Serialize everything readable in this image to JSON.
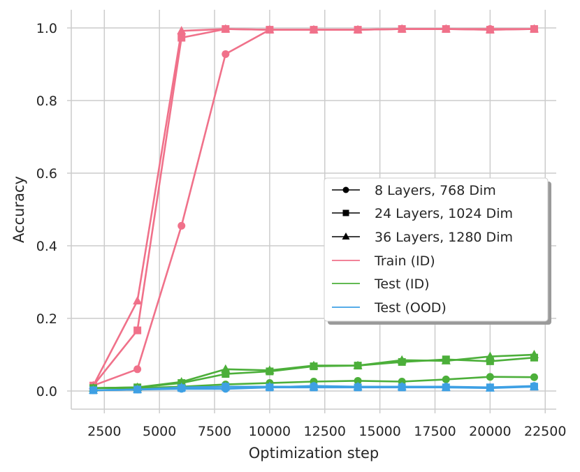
{
  "chart_data": {
    "type": "line",
    "title": "",
    "xlabel": "Optimization step",
    "ylabel": "Accuracy",
    "xlim": [
      1000,
      23000
    ],
    "ylim": [
      -0.05,
      1.05
    ],
    "x_ticks": [
      2500,
      5000,
      7500,
      10000,
      12500,
      15000,
      17500,
      20000,
      22500
    ],
    "y_ticks": [
      0.0,
      0.2,
      0.4,
      0.6,
      0.8,
      1.0
    ],
    "x_tick_labels": [
      "2500",
      "5000",
      "7500",
      "10000",
      "12500",
      "15000",
      "17500",
      "20000",
      "22500"
    ],
    "y_tick_labels": [
      "0.0",
      "0.2",
      "0.4",
      "0.6",
      "0.8",
      "1.0"
    ],
    "grid": true,
    "legend_position": "center-right",
    "x": [
      2000,
      4000,
      6000,
      8000,
      10000,
      12000,
      14000,
      16000,
      18000,
      20000,
      22000
    ],
    "legend": {
      "markers": [
        {
          "label": "8 Layers, 768 Dim",
          "marker": "circle"
        },
        {
          "label": "24 Layers, 1024 Dim",
          "marker": "square"
        },
        {
          "label": "36 Layers, 1280 Dim",
          "marker": "triangle"
        }
      ],
      "lines": [
        {
          "label": "Train (ID)",
          "color": "#f0718a"
        },
        {
          "label": "Test (ID)",
          "color": "#4caf3a"
        },
        {
          "label": "Test (OOD)",
          "color": "#3ea0e4"
        }
      ]
    },
    "series": [
      {
        "split": "Train (ID)",
        "model": "8 Layers, 768 Dim",
        "marker": "circle",
        "color": "#f0718a",
        "values": [
          0.015,
          0.06,
          0.455,
          0.928,
          0.995,
          0.995,
          0.995,
          0.997,
          0.997,
          0.997,
          0.997
        ]
      },
      {
        "split": "Train (ID)",
        "model": "24 Layers, 1024 Dim",
        "marker": "square",
        "color": "#f0718a",
        "values": [
          0.015,
          0.167,
          0.973,
          0.997,
          0.995,
          0.995,
          0.995,
          0.997,
          0.997,
          0.995,
          0.997
        ]
      },
      {
        "split": "Train (ID)",
        "model": "36 Layers, 1280 Dim",
        "marker": "triangle",
        "color": "#f0718a",
        "values": [
          0.015,
          0.248,
          0.992,
          0.997,
          0.995,
          0.995,
          0.995,
          0.997,
          0.997,
          0.995,
          0.997
        ]
      },
      {
        "split": "Test (ID)",
        "model": "8 Layers, 768 Dim",
        "marker": "circle",
        "color": "#4caf3a",
        "values": [
          0.008,
          0.008,
          0.012,
          0.018,
          0.022,
          0.026,
          0.028,
          0.026,
          0.032,
          0.039,
          0.038
        ]
      },
      {
        "split": "Test (ID)",
        "model": "24 Layers, 1024 Dim",
        "marker": "square",
        "color": "#4caf3a",
        "values": [
          0.008,
          0.01,
          0.022,
          0.047,
          0.054,
          0.068,
          0.07,
          0.08,
          0.087,
          0.082,
          0.092
        ]
      },
      {
        "split": "Test (ID)",
        "model": "36 Layers, 1280 Dim",
        "marker": "triangle",
        "color": "#4caf3a",
        "values": [
          0.008,
          0.01,
          0.025,
          0.06,
          0.057,
          0.07,
          0.07,
          0.085,
          0.083,
          0.095,
          0.1
        ]
      },
      {
        "split": "Test (OOD)",
        "model": "8 Layers, 768 Dim",
        "marker": "circle",
        "color": "#3ea0e4",
        "values": [
          0.002,
          0.004,
          0.006,
          0.006,
          0.01,
          0.014,
          0.012,
          0.012,
          0.012,
          0.01,
          0.014
        ]
      },
      {
        "split": "Test (OOD)",
        "model": "24 Layers, 1024 Dim",
        "marker": "square",
        "color": "#3ea0e4",
        "values": [
          0.002,
          0.004,
          0.008,
          0.012,
          0.01,
          0.01,
          0.01,
          0.01,
          0.01,
          0.01,
          0.012
        ]
      },
      {
        "split": "Test (OOD)",
        "model": "36 Layers, 1280 Dim",
        "marker": "triangle",
        "color": "#3ea0e4",
        "values": [
          0.002,
          0.004,
          0.01,
          0.012,
          0.012,
          0.012,
          0.012,
          0.012,
          0.01,
          0.008,
          0.012
        ]
      }
    ]
  }
}
